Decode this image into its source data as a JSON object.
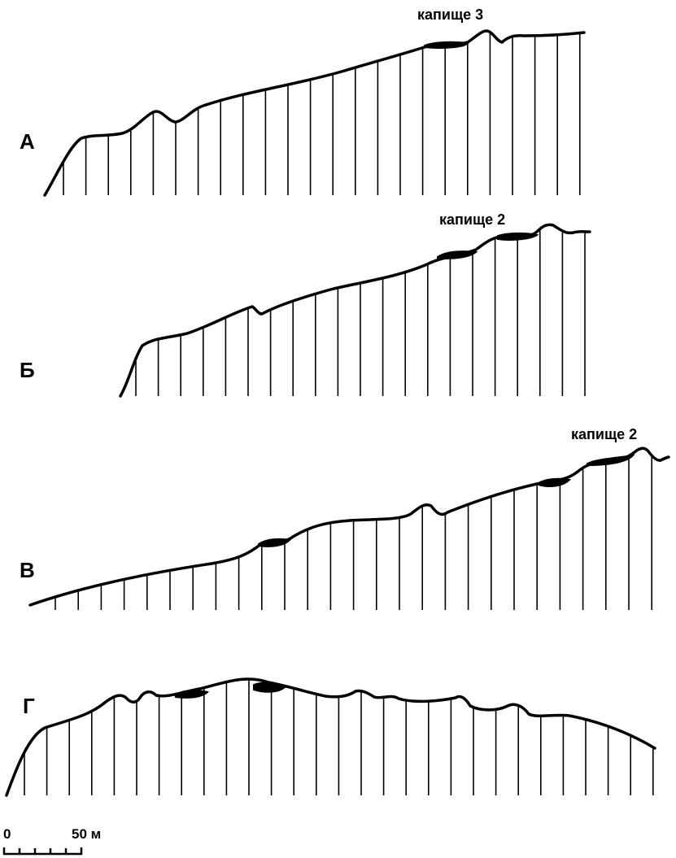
{
  "profiles": [
    {
      "id": "A",
      "label": "А",
      "site_label": "капище 3"
    },
    {
      "id": "B",
      "label": "Б",
      "site_label": "капище 2"
    },
    {
      "id": "V",
      "label": "В",
      "site_label": "капище 2"
    },
    {
      "id": "G",
      "label": "Г",
      "site_label": ""
    }
  ],
  "scale_bar": {
    "start_label": "0",
    "end_label": "50 м"
  }
}
